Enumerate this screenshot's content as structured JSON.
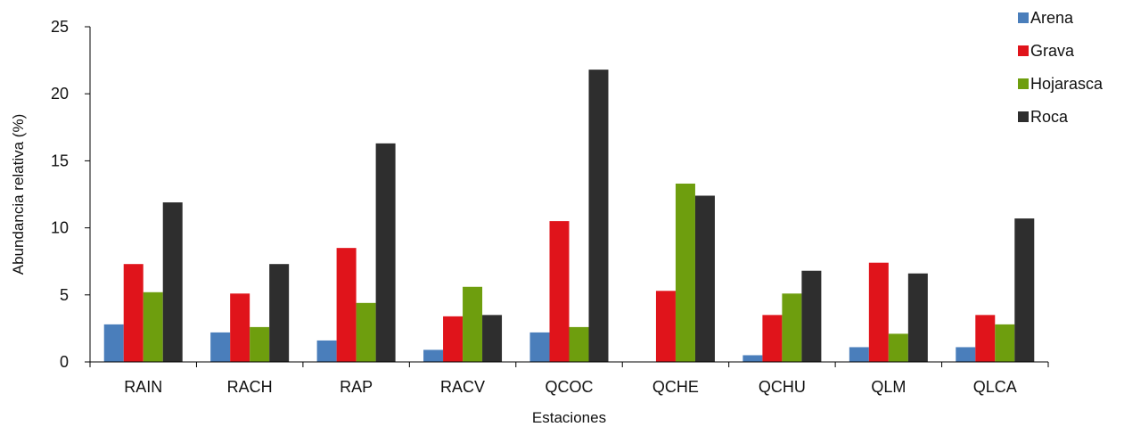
{
  "chart_data": {
    "type": "bar",
    "title": "",
    "xlabel": "Estaciones",
    "ylabel": "Abundancia relativa (%)",
    "ylim": [
      0,
      25
    ],
    "yticks": [
      "0",
      "5",
      "10",
      "15",
      "20",
      "25"
    ],
    "grid": false,
    "legend_position": "top-right",
    "categories": [
      "RAIN",
      "RACH",
      "RAP",
      "RACV",
      "QCOC",
      "QCHE",
      "QCHU",
      "QLM",
      "QLCA"
    ],
    "series": [
      {
        "name": "Arena",
        "color": "#4a7ebb",
        "values": [
          2.8,
          2.2,
          1.6,
          0.9,
          2.2,
          0,
          0.5,
          1.1,
          1.1
        ]
      },
      {
        "name": "Grava",
        "color": "#e0141b",
        "values": [
          7.3,
          5.1,
          8.5,
          3.4,
          10.5,
          5.3,
          3.5,
          7.4,
          3.5
        ]
      },
      {
        "name": "Hojarasca",
        "color": "#6e9e0e",
        "values": [
          5.2,
          2.6,
          4.4,
          5.6,
          2.6,
          13.3,
          5.1,
          2.1,
          2.8
        ]
      },
      {
        "name": "Roca",
        "color": "#2e2e2e",
        "values": [
          11.9,
          7.3,
          16.3,
          3.5,
          21.8,
          12.4,
          6.8,
          6.6,
          10.7
        ]
      }
    ]
  }
}
